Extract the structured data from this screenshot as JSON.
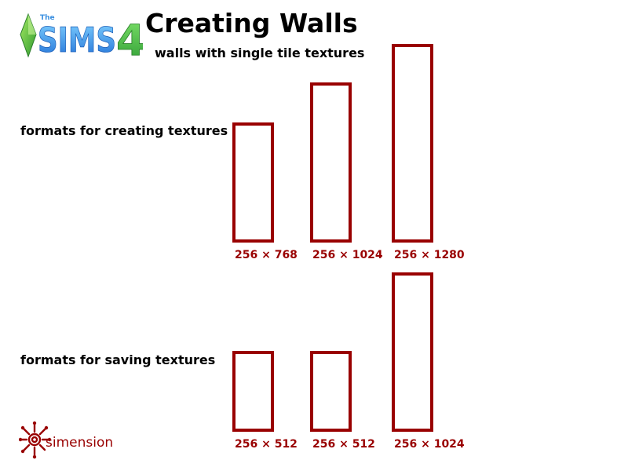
{
  "logo": {
    "small_text": "The",
    "wordmark": "SIMS",
    "number": "4"
  },
  "header": {
    "title": "Creating Walls",
    "subtitle": "walls with single tile textures"
  },
  "rows": [
    {
      "label": "formats for creating textures",
      "formats": [
        {
          "label": "256 × 768",
          "width": 256,
          "height": 768
        },
        {
          "label": "256 × 1024",
          "width": 256,
          "height": 1024
        },
        {
          "label": "256 × 1280",
          "width": 256,
          "height": 1280
        }
      ]
    },
    {
      "label": "formats for saving textures",
      "formats": [
        {
          "label": "256 × 512",
          "width": 256,
          "height": 512
        },
        {
          "label": "256 × 512",
          "width": 256,
          "height": 512
        },
        {
          "label": "256 × 1024",
          "width": 256,
          "height": 1024
        }
      ]
    }
  ],
  "footer": {
    "brand": "simension",
    "brand_icon": "sun-spiral-icon"
  },
  "colors": {
    "accent": "#990000",
    "logo_blue": "#3a8fe0",
    "logo_green": "#3fb94a"
  }
}
